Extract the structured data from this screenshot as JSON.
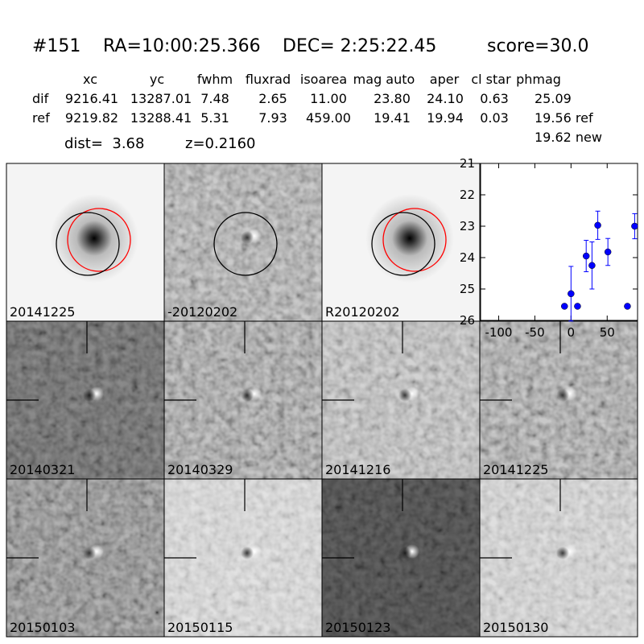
{
  "header": {
    "id": "#151",
    "ra": "RA=10:00:25.366",
    "dec": "DEC= 2:25:22.45",
    "score": "score=30.0"
  },
  "table": {
    "columns": [
      "xc",
      "yc",
      "fwhm",
      "fluxrad",
      "isoarea",
      "mag auto",
      "aper",
      "cl star",
      "phmag"
    ],
    "rows": [
      [
        "dif",
        "9216.41",
        "13287.01",
        "7.48",
        "2.65",
        "11.00",
        "23.80",
        "24.10",
        "0.63",
        "25.09"
      ],
      [
        "ref",
        "9219.82",
        "13288.41",
        "5.31",
        "7.93",
        "459.00",
        "19.41",
        "19.94",
        "0.03",
        "19.56 ref"
      ]
    ],
    "extra": "19.62 new"
  },
  "summary": {
    "dist": "dist=  3.68",
    "z": "z=0.2160"
  },
  "stamps": [
    {
      "label": "20141225"
    },
    {
      "label": "-20120202"
    },
    {
      "label": "R20120202"
    },
    {
      "label": "20140321"
    },
    {
      "label": "20140329"
    },
    {
      "label": "20141216"
    },
    {
      "label": "20141225",
      "color": "#ff0000"
    },
    {
      "label": "20150103"
    },
    {
      "label": "20150115"
    },
    {
      "label": "20150123"
    },
    {
      "label": "20150130"
    }
  ],
  "chart_data": {
    "type": "scatter",
    "color": "#0000ff",
    "x": [
      -9,
      0,
      9,
      21,
      29,
      37,
      51,
      78,
      88
    ],
    "values": [
      25.55,
      25.15,
      25.55,
      23.95,
      24.25,
      22.97,
      23.82,
      25.55,
      23.0
    ],
    "errors": [
      0.05,
      0.87,
      0.05,
      0.5,
      0.75,
      0.45,
      0.43,
      0.05,
      0.4
    ],
    "xlim": [
      -125,
      92
    ],
    "xticks": [
      -100,
      -50,
      0,
      50
    ],
    "ylim": [
      26,
      21
    ],
    "yticks": [
      21,
      22,
      23,
      24,
      25,
      26
    ]
  }
}
